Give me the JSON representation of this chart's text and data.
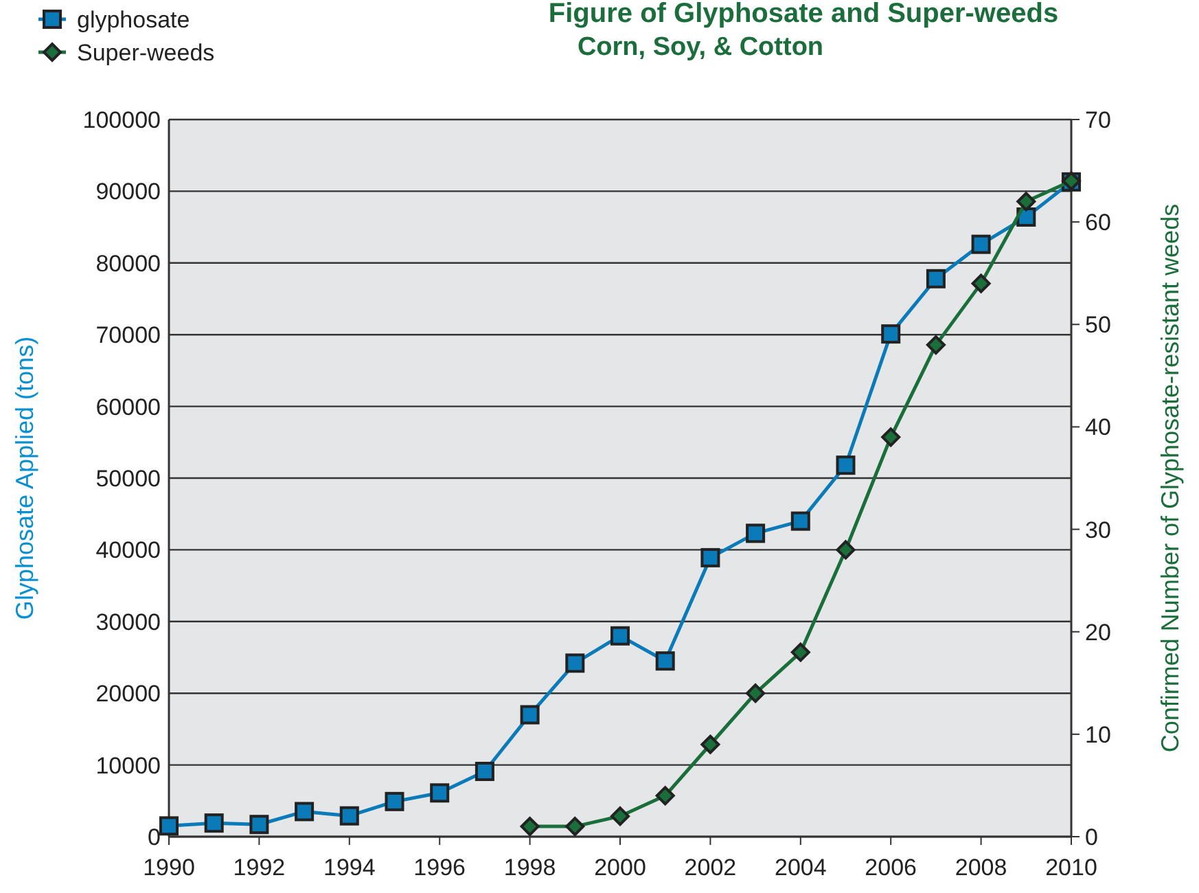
{
  "chart_data": {
    "type": "line",
    "title": "Figure of Glyphosate and Super-weeds",
    "subtitle": "Corn, Soy, & Cotton",
    "ylabel": "Glyphosate Applied (tons)",
    "y2label": "Confirmed Number of Glyphosate-resistant weeds",
    "xlim": [
      1990,
      2010
    ],
    "xticks": [
      1990,
      1992,
      1994,
      1996,
      1998,
      2000,
      2002,
      2004,
      2006,
      2008,
      2010
    ],
    "ylim": [
      0,
      100000
    ],
    "yticks": [
      0,
      10000,
      20000,
      30000,
      40000,
      50000,
      60000,
      70000,
      80000,
      90000,
      100000
    ],
    "y2lim": [
      0,
      70
    ],
    "y2ticks": [
      0,
      10,
      20,
      30,
      40,
      50,
      60,
      70
    ],
    "grid": "y",
    "legend": "top left",
    "line_style": "solid",
    "series": [
      {
        "name": "glyphosate",
        "color": "#0a7ab8",
        "marker": "square",
        "x": [
          1990,
          1991,
          1992,
          1993,
          1994,
          1995,
          1996,
          1997,
          1998,
          1999,
          2000,
          2001,
          2002,
          2003,
          2004,
          2005,
          2006,
          2007,
          2008,
          2009,
          2010
        ],
        "values": [
          1500,
          1900,
          1700,
          3500,
          2900,
          4900,
          6100,
          9100,
          17000,
          24200,
          28000,
          24500,
          38900,
          42300,
          44000,
          51800,
          70100,
          77800,
          82600,
          86400,
          91300
        ]
      },
      {
        "name": "Super-weeds",
        "color": "#1a6e3a",
        "marker": "diamond",
        "axis": "y2",
        "x": [
          1998,
          1999,
          2000,
          2001,
          2002,
          2003,
          2004,
          2005,
          2006,
          2007,
          2008,
          2009,
          2010
        ],
        "values": [
          1,
          1,
          2,
          4,
          9,
          14,
          18,
          28,
          39,
          48,
          54,
          62,
          64
        ]
      }
    ]
  }
}
